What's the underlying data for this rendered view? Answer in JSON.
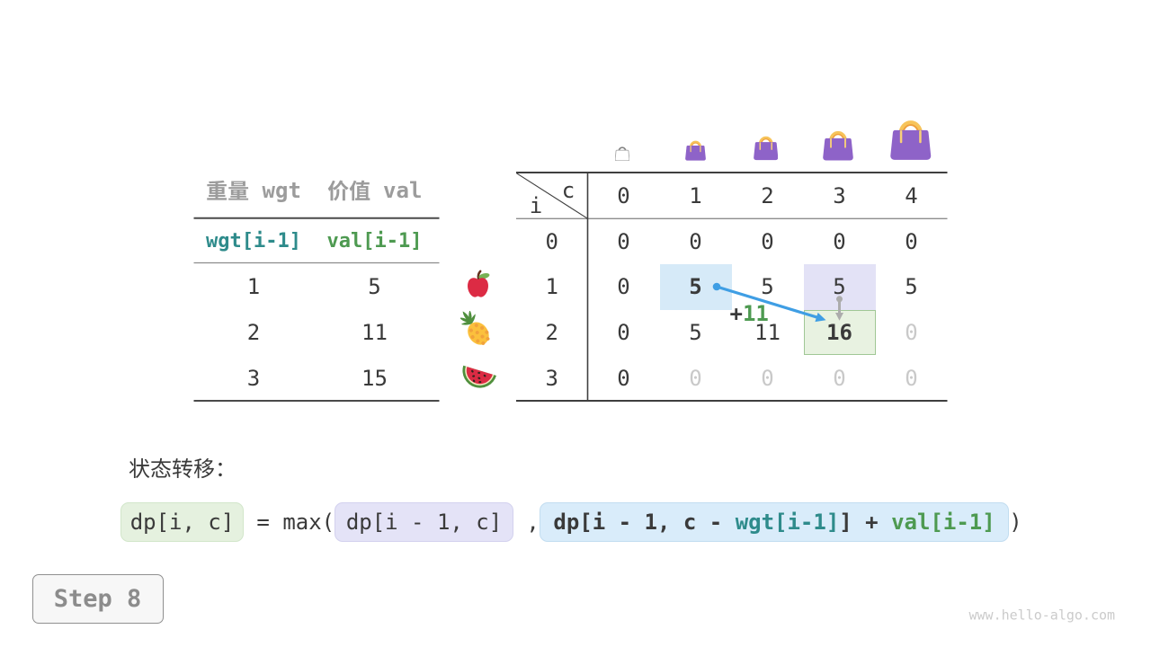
{
  "figure": {
    "description": "0-1 knapsack dynamic programming table, state transition step",
    "watermark": "www.hello-algo.com"
  },
  "step_indicator": {
    "label": "Step 8"
  },
  "items_table": {
    "headers": [
      "重量 wgt",
      "价值 val"
    ],
    "code_row": [
      "wgt[i-1]",
      "val[i-1]"
    ],
    "rows": [
      {
        "wgt": "1",
        "val": "5",
        "icon": "apple-icon"
      },
      {
        "wgt": "2",
        "val": "11",
        "icon": "pineapple-icon"
      },
      {
        "wgt": "3",
        "val": "15",
        "icon": "watermelon-icon"
      }
    ]
  },
  "dp_table": {
    "corner": {
      "col_var": "c",
      "row_var": "i"
    },
    "col_headers": [
      "0",
      "1",
      "2",
      "3",
      "4"
    ],
    "row_headers": [
      "0",
      "1",
      "2",
      "3"
    ],
    "capacity_icons": [
      "bag-tiny-outline-icon",
      "bag-small-icon",
      "bag-medium-icon",
      "bag-large-icon",
      "bag-xlarge-icon"
    ],
    "cells": [
      [
        "0",
        "0",
        "0",
        "0",
        "0"
      ],
      [
        "0",
        "5",
        "5",
        "5",
        "5"
      ],
      [
        "0",
        "5",
        "11",
        "16",
        "0"
      ],
      [
        "0",
        "0",
        "0",
        "0",
        "0"
      ]
    ],
    "cell_styles": [
      [
        "",
        "",
        "",
        "",
        ""
      ],
      [
        "",
        "bold",
        "",
        "",
        ""
      ],
      [
        "",
        "",
        "",
        "bold",
        "dim"
      ],
      [
        "",
        "dim",
        "dim",
        "dim",
        "dim"
      ]
    ],
    "highlights": [
      {
        "row": 1,
        "col": 1,
        "kind": "source-cell-blue"
      },
      {
        "row": 1,
        "col": 3,
        "kind": "source-cell-purple"
      },
      {
        "row": 2,
        "col": 3,
        "kind": "target-cell-green"
      }
    ],
    "annotation": {
      "plus": "+",
      "value": "11"
    }
  },
  "transition": {
    "title": "状态转移：",
    "result_token": "dp[i, c]",
    "equals_text": " = max(",
    "keep_token": "dp[i - 1, c]",
    "comma_text": " ,",
    "take_token_parts": {
      "p1": "dp[i - 1, c - ",
      "wgt": "wgt[i-1]",
      "p2": "] + ",
      "val": "val[i-1]"
    },
    "close_paren": ")"
  },
  "colors": {
    "text_dark": "#3a3a3a",
    "header_gray": "#9c9c9c",
    "teal": "#2e8b8b",
    "green": "#4e9a51",
    "pending_gray": "#c9c9c9",
    "arrow_blue": "#3f9ee4",
    "arrow_gray": "#acacac",
    "cell_blue": "#d6eaf8",
    "cell_purple": "#e3e2f6",
    "cell_green": "#e8f2e1",
    "cell_green_border": "#a0c795",
    "bag_purple": "#8e63c8",
    "bag_handle": "#f5bd51"
  }
}
